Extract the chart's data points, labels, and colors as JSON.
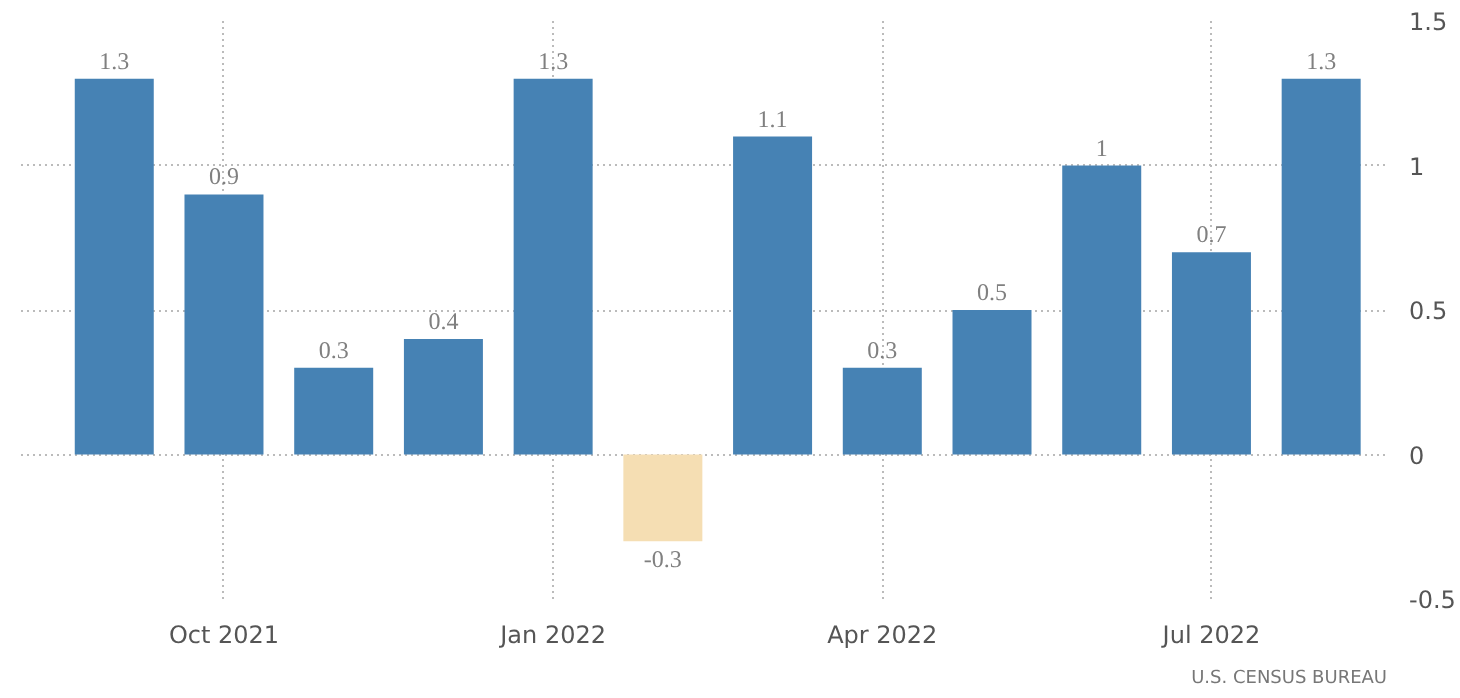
{
  "chart_data": {
    "type": "bar",
    "categories": [
      null,
      "Oct 2021",
      null,
      null,
      "Jan 2022",
      null,
      null,
      "Apr 2022",
      null,
      null,
      "Jul 2022",
      null
    ],
    "values": [
      1.3,
      0.9,
      0.3,
      0.4,
      1.3,
      -0.3,
      1.1,
      0.3,
      0.5,
      1,
      0.7,
      1.3
    ],
    "colors": [
      "#4682b4",
      "#4682b4",
      "#4682b4",
      "#4682b4",
      "#4682b4",
      "#f5deb3",
      "#4682b4",
      "#4682b4",
      "#4682b4",
      "#4682b4",
      "#4682b4",
      "#4682b4"
    ],
    "ylim": [
      -0.5,
      1.5
    ],
    "yticks": [
      -0.5,
      0,
      0.5,
      1,
      1.5
    ],
    "grid": true,
    "data_labels": true,
    "annotations": [
      "U.S. CENSUS BUREAU"
    ]
  }
}
